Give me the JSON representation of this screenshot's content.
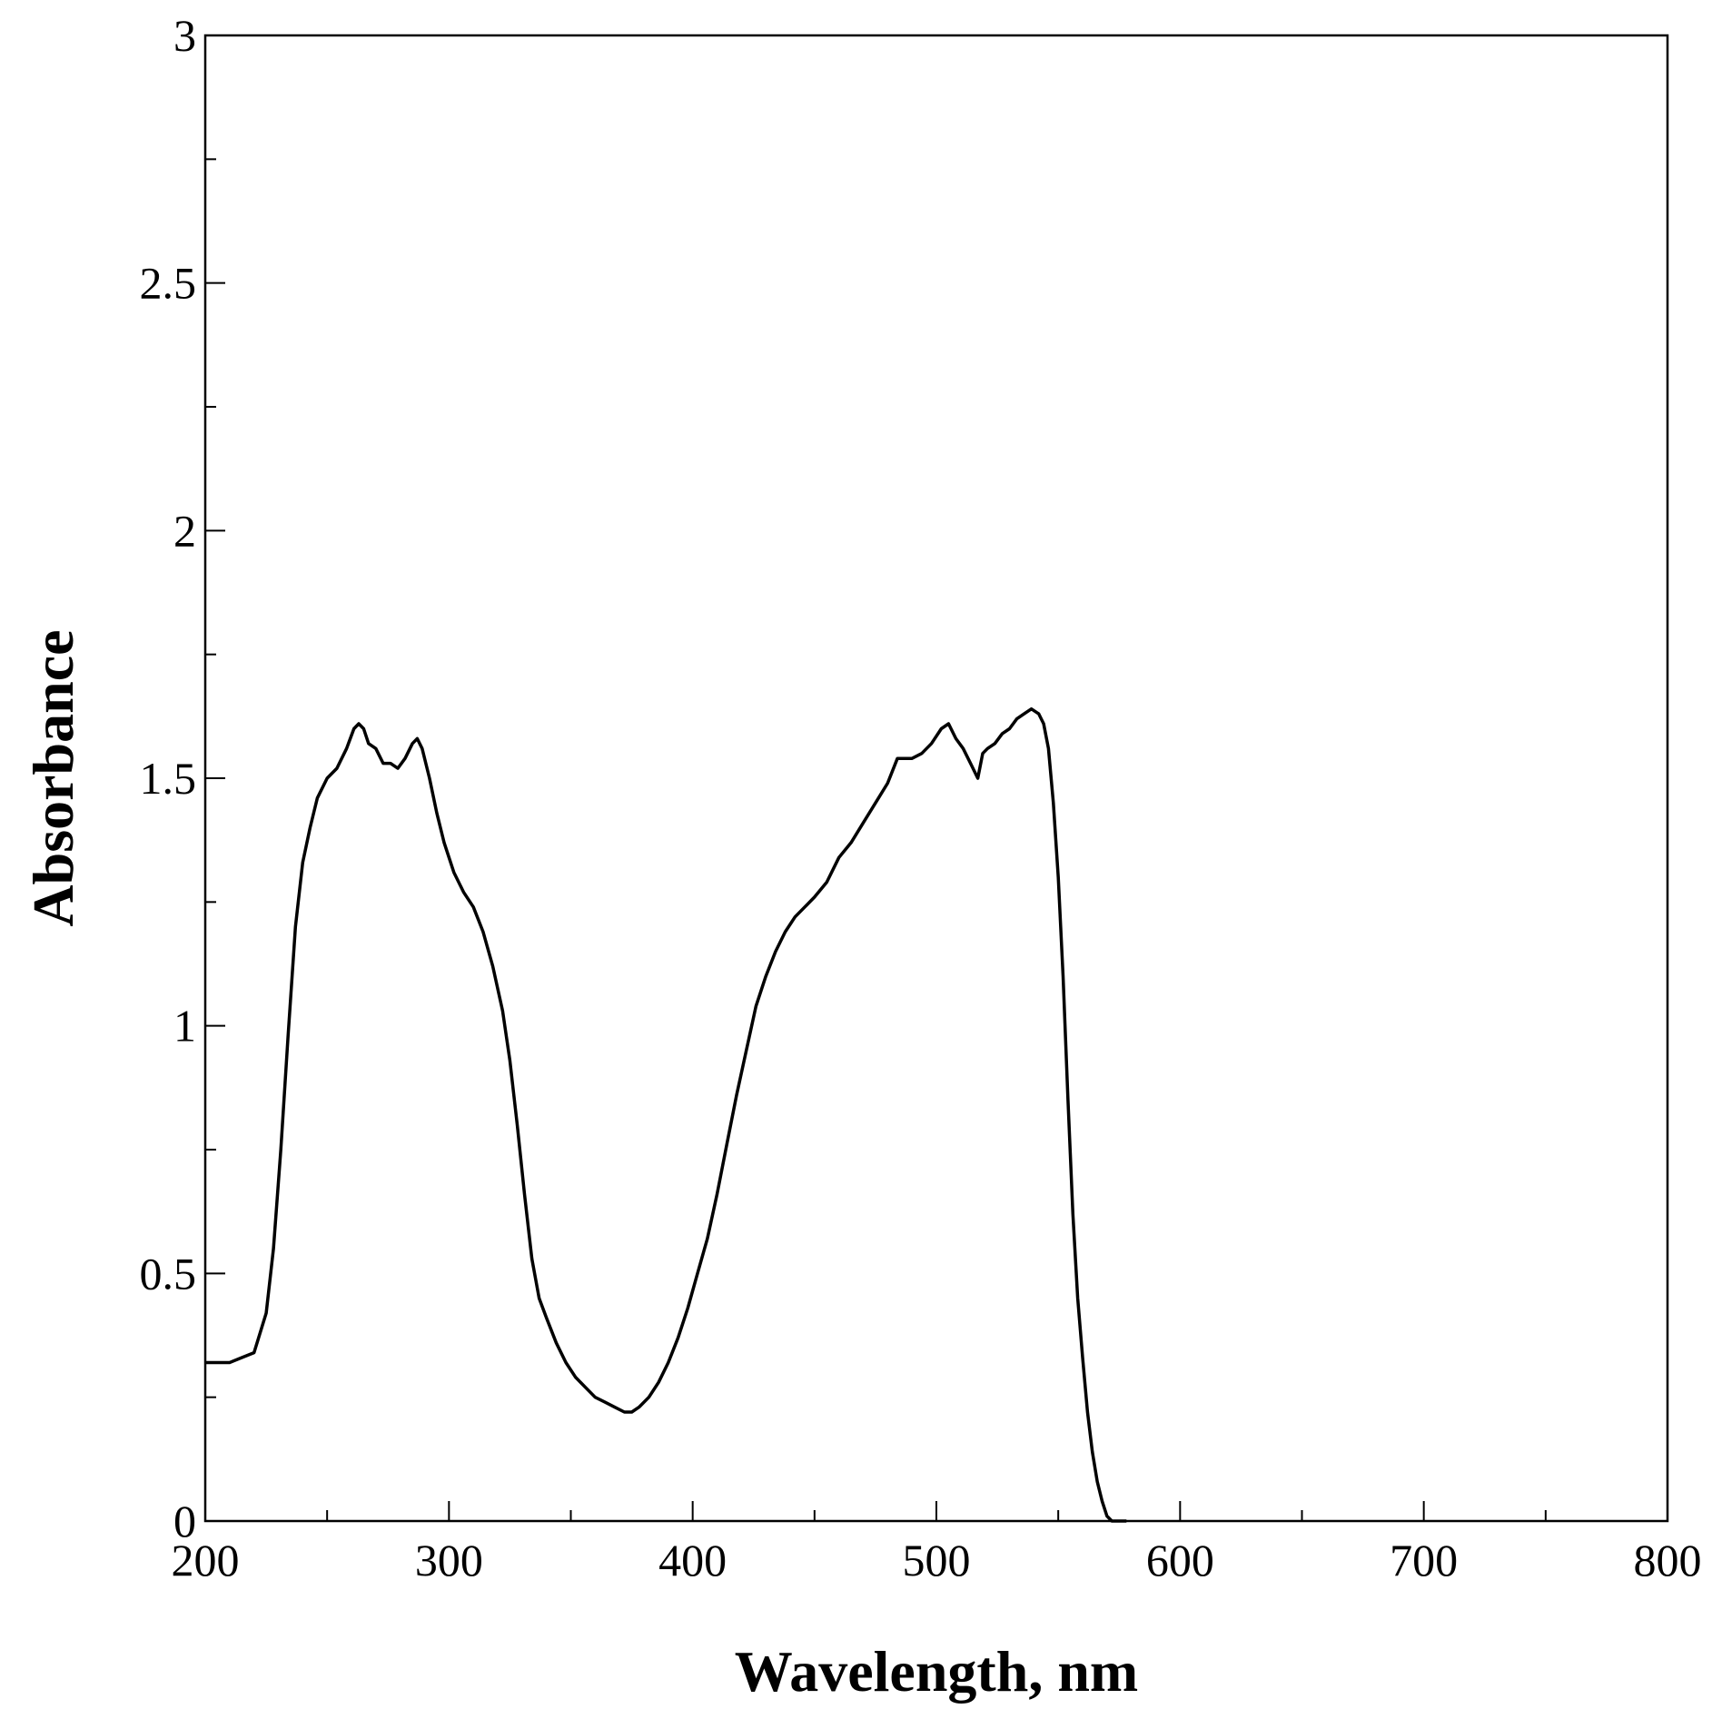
{
  "chart_data": {
    "type": "line",
    "title": "",
    "xlabel": "Wavelength, nm",
    "ylabel": "Absorbance",
    "xlim": [
      200,
      800
    ],
    "ylim": [
      0,
      3
    ],
    "x_ticks": [
      "200",
      "300",
      "400",
      "500",
      "600",
      "700",
      "800"
    ],
    "y_ticks": [
      "0",
      "0.5",
      "1",
      "1.5",
      "2",
      "2.5",
      "3"
    ],
    "grid": false,
    "legend": "none",
    "line_color": "#000000",
    "series": [
      {
        "x": [
          200,
          205,
          210,
          215,
          220,
          225,
          228,
          231,
          234,
          237,
          240,
          243,
          246,
          250,
          254,
          258,
          261,
          263,
          265,
          267,
          270,
          273,
          276,
          279,
          282,
          285,
          287,
          289,
          292,
          295,
          298,
          302,
          306,
          310,
          314,
          318,
          322,
          325,
          328,
          331,
          334,
          337,
          340,
          344,
          348,
          352,
          356,
          360,
          364,
          368,
          372,
          375,
          378,
          382,
          386,
          390,
          394,
          398,
          402,
          406,
          410,
          414,
          418,
          422,
          426,
          430,
          434,
          438,
          442,
          446,
          450,
          455,
          460,
          465,
          470,
          475,
          480,
          484,
          487,
          490,
          494,
          498,
          502,
          505,
          508,
          511,
          514,
          517,
          519,
          521,
          524,
          527,
          530,
          533,
          536,
          539,
          542,
          544,
          546,
          548,
          550,
          552,
          554,
          556,
          558,
          560,
          562,
          564,
          566,
          568,
          570,
          572,
          574,
          576,
          578
        ],
        "y": [
          0.32,
          0.32,
          0.32,
          0.33,
          0.34,
          0.42,
          0.55,
          0.75,
          0.98,
          1.2,
          1.33,
          1.4,
          1.46,
          1.5,
          1.52,
          1.56,
          1.6,
          1.61,
          1.6,
          1.57,
          1.56,
          1.53,
          1.53,
          1.52,
          1.54,
          1.57,
          1.58,
          1.56,
          1.5,
          1.43,
          1.37,
          1.31,
          1.27,
          1.24,
          1.19,
          1.12,
          1.03,
          0.93,
          0.8,
          0.66,
          0.53,
          0.45,
          0.41,
          0.36,
          0.32,
          0.29,
          0.27,
          0.25,
          0.24,
          0.23,
          0.22,
          0.22,
          0.23,
          0.25,
          0.28,
          0.32,
          0.37,
          0.43,
          0.5,
          0.57,
          0.66,
          0.76,
          0.86,
          0.95,
          1.04,
          1.1,
          1.15,
          1.19,
          1.22,
          1.24,
          1.26,
          1.29,
          1.34,
          1.37,
          1.41,
          1.45,
          1.49,
          1.54,
          1.54,
          1.54,
          1.55,
          1.57,
          1.6,
          1.61,
          1.58,
          1.56,
          1.53,
          1.5,
          1.55,
          1.56,
          1.57,
          1.59,
          1.6,
          1.62,
          1.63,
          1.64,
          1.63,
          1.61,
          1.56,
          1.45,
          1.3,
          1.1,
          0.85,
          0.62,
          0.45,
          0.33,
          0.22,
          0.14,
          0.08,
          0.04,
          0.01,
          0.0,
          0.0,
          0.0,
          0.0
        ]
      }
    ]
  }
}
